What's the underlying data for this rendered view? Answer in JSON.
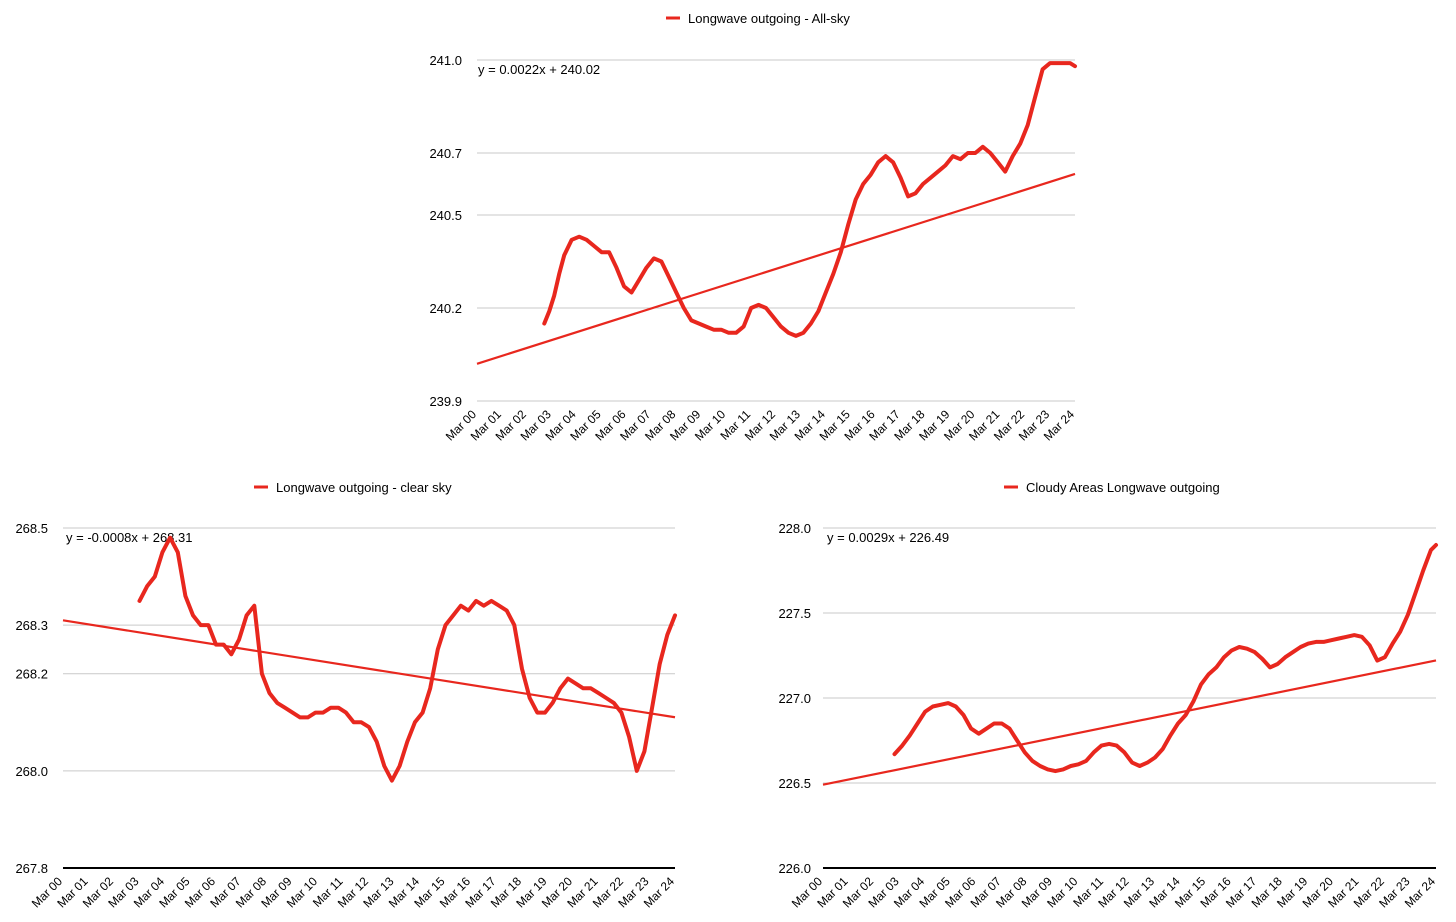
{
  "chart_data": [
    {
      "type": "line",
      "legend": "Longwave outgoing - All-sky",
      "legend_position": "top",
      "series_color": "#e8271e",
      "trendline_label": "y = 0.0022x + 240.02",
      "trend": {
        "slope": 0.0022,
        "intercept": 240.02
      },
      "ylim": [
        239.9,
        241.0
      ],
      "yticks": [
        "241.0",
        "240.7",
        "240.5",
        "240.2",
        "239.9"
      ],
      "xticks": [
        "Mar 00",
        "Mar 01",
        "Mar 02",
        "Mar 03",
        "Mar 04",
        "Mar 05",
        "Mar 06",
        "Mar 07",
        "Mar 08",
        "Mar 09",
        "Mar 10",
        "Mar 11",
        "Mar 12",
        "Mar 13",
        "Mar 14",
        "Mar 15",
        "Mar 16",
        "Mar 17",
        "Mar 18",
        "Mar 19",
        "Mar 20",
        "Mar 21",
        "Mar 22",
        "Mar 23",
        "Mar 24"
      ],
      "grid": true,
      "x": [
        2.7,
        2.9,
        3.1,
        3.3,
        3.5,
        3.8,
        4.1,
        4.4,
        4.7,
        5.0,
        5.3,
        5.6,
        5.9,
        6.2,
        6.5,
        6.8,
        7.1,
        7.4,
        7.7,
        8.0,
        8.3,
        8.6,
        8.9,
        9.2,
        9.5,
        9.8,
        10.1,
        10.4,
        10.7,
        11.0,
        11.3,
        11.6,
        11.9,
        12.2,
        12.5,
        12.8,
        13.1,
        13.4,
        13.7,
        14.0,
        14.3,
        14.6,
        14.9,
        15.2,
        15.5,
        15.8,
        16.1,
        16.4,
        16.7,
        17.0,
        17.3,
        17.6,
        17.9,
        18.2,
        18.5,
        18.8,
        19.1,
        19.4,
        19.7,
        20.0,
        20.3,
        20.6,
        20.9,
        21.2,
        21.5,
        21.8,
        22.1,
        22.4,
        22.7,
        23.0,
        23.3,
        23.6,
        23.8,
        24.0
      ],
      "values": [
        240.15,
        240.19,
        240.24,
        240.31,
        240.37,
        240.42,
        240.43,
        240.42,
        240.4,
        240.38,
        240.38,
        240.33,
        240.27,
        240.25,
        240.29,
        240.33,
        240.36,
        240.35,
        240.3,
        240.25,
        240.2,
        240.16,
        240.15,
        240.14,
        240.13,
        240.13,
        240.12,
        240.12,
        240.14,
        240.2,
        240.21,
        240.2,
        240.17,
        240.14,
        240.12,
        240.11,
        240.12,
        240.15,
        240.19,
        240.25,
        240.31,
        240.38,
        240.47,
        240.55,
        240.6,
        240.63,
        240.67,
        240.69,
        240.67,
        240.62,
        240.56,
        240.57,
        240.6,
        240.62,
        240.64,
        240.66,
        240.69,
        240.68,
        240.7,
        240.7,
        240.72,
        240.7,
        240.67,
        240.64,
        240.69,
        240.73,
        240.79,
        240.88,
        240.97,
        240.99,
        240.99,
        240.99,
        240.99,
        240.98
      ]
    },
    {
      "type": "line",
      "legend": "Longwave outgoing - clear sky",
      "legend_position": "top",
      "series_color": "#e8271e",
      "trendline_label": "y = -0.0008x + 268.31",
      "trend": {
        "slope": -0.0008,
        "intercept": 268.31
      },
      "ylim": [
        267.8,
        268.5
      ],
      "yticks": [
        "268.5",
        "268.3",
        "268.2",
        "268.0",
        "267.8"
      ],
      "xticks": [
        "Mar 00",
        "Mar 01",
        "Mar 02",
        "Mar 03",
        "Mar 04",
        "Mar 05",
        "Mar 06",
        "Mar 07",
        "Mar 08",
        "Mar 09",
        "Mar 10",
        "Mar 11",
        "Mar 12",
        "Mar 13",
        "Mar 14",
        "Mar 15",
        "Mar 16",
        "Mar 17",
        "Mar 18",
        "Mar 19",
        "Mar 20",
        "Mar 21",
        "Mar 22",
        "Mar 23",
        "Mar 24"
      ],
      "grid": true,
      "x": [
        3.0,
        3.3,
        3.6,
        3.9,
        4.2,
        4.5,
        4.8,
        5.1,
        5.4,
        5.7,
        6.0,
        6.3,
        6.6,
        6.9,
        7.2,
        7.5,
        7.8,
        8.1,
        8.4,
        8.7,
        9.0,
        9.3,
        9.6,
        9.9,
        10.2,
        10.5,
        10.8,
        11.1,
        11.4,
        11.7,
        12.0,
        12.3,
        12.6,
        12.9,
        13.2,
        13.5,
        13.8,
        14.1,
        14.4,
        14.7,
        15.0,
        15.3,
        15.6,
        15.9,
        16.2,
        16.5,
        16.8,
        17.1,
        17.4,
        17.7,
        18.0,
        18.3,
        18.6,
        18.9,
        19.2,
        19.5,
        19.8,
        20.1,
        20.4,
        20.7,
        21.0,
        21.3,
        21.6,
        21.9,
        22.2,
        22.5,
        22.8,
        23.1,
        23.4,
        23.7,
        24.0
      ],
      "values": [
        268.35,
        268.38,
        268.4,
        268.45,
        268.48,
        268.45,
        268.36,
        268.32,
        268.3,
        268.3,
        268.26,
        268.26,
        268.24,
        268.27,
        268.32,
        268.34,
        268.2,
        268.16,
        268.14,
        268.13,
        268.12,
        268.11,
        268.11,
        268.12,
        268.12,
        268.13,
        268.13,
        268.12,
        268.1,
        268.1,
        268.09,
        268.06,
        268.01,
        267.98,
        268.01,
        268.06,
        268.1,
        268.12,
        268.17,
        268.25,
        268.3,
        268.32,
        268.34,
        268.33,
        268.35,
        268.34,
        268.35,
        268.34,
        268.33,
        268.3,
        268.21,
        268.15,
        268.12,
        268.12,
        268.14,
        268.17,
        268.19,
        268.18,
        268.17,
        268.17,
        268.16,
        268.15,
        268.14,
        268.12,
        268.07,
        268.0,
        268.04,
        268.13,
        268.22,
        268.28,
        268.32
      ]
    },
    {
      "type": "line",
      "legend": "Cloudy Areas Longwave outgoing",
      "legend_position": "top",
      "series_color": "#e8271e",
      "trendline_label": "y = 0.0029x + 226.49",
      "trend": {
        "slope": 0.0029,
        "intercept": 226.49
      },
      "ylim": [
        226.0,
        228.0
      ],
      "yticks": [
        "228.0",
        "227.5",
        "227.0",
        "226.5",
        "226.0"
      ],
      "xticks": [
        "Mar 00",
        "Mar 01",
        "Mar 02",
        "Mar 03",
        "Mar 04",
        "Mar 05",
        "Mar 06",
        "Mar 07",
        "Mar 08",
        "Mar 09",
        "Mar 10",
        "Mar 11",
        "Mar 12",
        "Mar 13",
        "Mar 14",
        "Mar 15",
        "Mar 16",
        "Mar 17",
        "Mar 18",
        "Mar 19",
        "Mar 20",
        "Mar 21",
        "Mar 22",
        "Mar 23",
        "Mar 24"
      ],
      "grid": true,
      "x": [
        2.8,
        3.1,
        3.4,
        3.7,
        4.0,
        4.3,
        4.6,
        4.9,
        5.2,
        5.5,
        5.8,
        6.1,
        6.4,
        6.7,
        7.0,
        7.3,
        7.6,
        7.9,
        8.2,
        8.5,
        8.8,
        9.1,
        9.4,
        9.7,
        10.0,
        10.3,
        10.6,
        10.9,
        11.2,
        11.5,
        11.8,
        12.1,
        12.4,
        12.7,
        13.0,
        13.3,
        13.6,
        13.9,
        14.2,
        14.5,
        14.8,
        15.1,
        15.4,
        15.7,
        16.0,
        16.3,
        16.6,
        16.9,
        17.2,
        17.5,
        17.8,
        18.1,
        18.4,
        18.7,
        19.0,
        19.3,
        19.6,
        19.9,
        20.2,
        20.5,
        20.8,
        21.1,
        21.4,
        21.7,
        22.0,
        22.3,
        22.6,
        22.9,
        23.2,
        23.5,
        23.8,
        24.0
      ],
      "values": [
        226.67,
        226.72,
        226.78,
        226.85,
        226.92,
        226.95,
        226.96,
        226.97,
        226.95,
        226.9,
        226.82,
        226.79,
        226.82,
        226.85,
        226.85,
        226.82,
        226.75,
        226.68,
        226.63,
        226.6,
        226.58,
        226.57,
        226.58,
        226.6,
        226.61,
        226.63,
        226.68,
        226.72,
        226.73,
        226.72,
        226.68,
        226.62,
        226.6,
        226.62,
        226.65,
        226.7,
        226.78,
        226.85,
        226.9,
        226.98,
        227.08,
        227.14,
        227.18,
        227.24,
        227.28,
        227.3,
        227.29,
        227.27,
        227.23,
        227.18,
        227.2,
        227.24,
        227.27,
        227.3,
        227.32,
        227.33,
        227.33,
        227.34,
        227.35,
        227.36,
        227.37,
        227.36,
        227.31,
        227.22,
        227.24,
        227.32,
        227.39,
        227.49,
        227.62,
        227.75,
        227.87,
        227.9
      ]
    }
  ]
}
